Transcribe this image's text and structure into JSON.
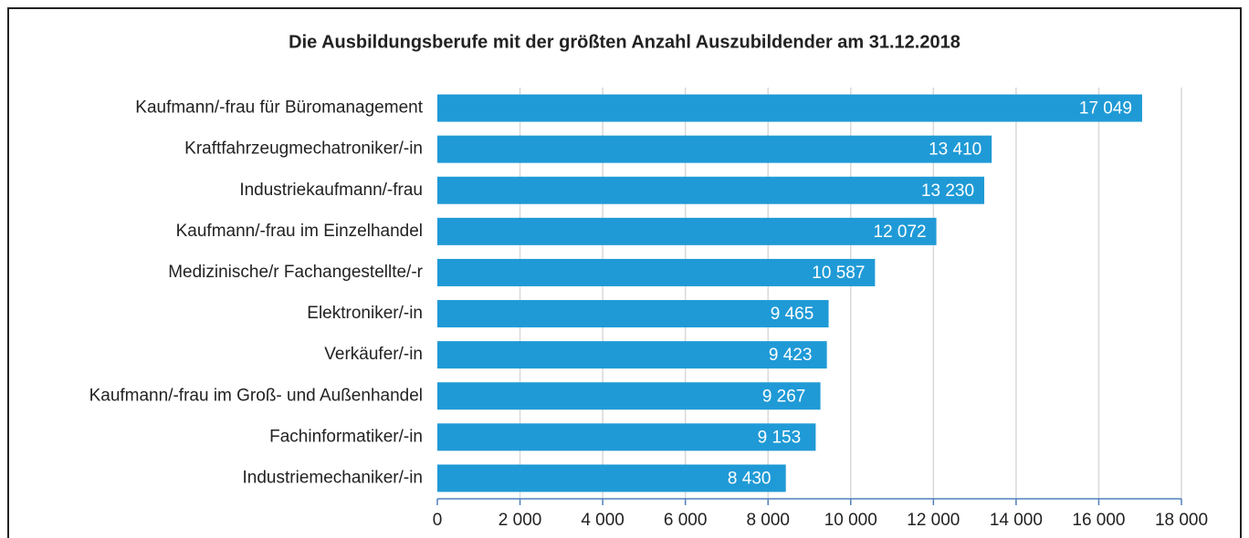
{
  "chart_data": {
    "type": "hbar",
    "title": "Die Ausbildungsberufe mit der größten Anzahl Auszubildender am 31.12.2018",
    "categories": [
      "Kaufmann/-frau für Büromanagement",
      "Kraftfahrzeugmechatroniker/-in",
      "Industriekaufmann/-frau",
      "Kaufmann/-frau im Einzelhandel",
      "Medizinische/r Fachangestellte/-r",
      "Elektroniker/-in",
      "Verkäufer/-in",
      "Kaufmann/-frau im Groß- und Außenhandel",
      "Fachinformatiker/-in",
      "Industriemechaniker/-in"
    ],
    "values": [
      17049,
      13410,
      13230,
      12072,
      10587,
      9465,
      9423,
      9267,
      9153,
      8430
    ],
    "value_labels": [
      "17 049",
      "13 410",
      "13 230",
      "12 072",
      "10 587",
      "9 465",
      "9 423",
      "9 267",
      "9 153",
      "8 430"
    ],
    "color": "#1f9ad6",
    "xlim": [
      0,
      18000
    ],
    "xticks": [
      0,
      {
        "value": 2000,
        "label": "2 000"
      },
      {
        "value": 4000,
        "label": "4 000"
      },
      {
        "value": 6000,
        "label": "6 000"
      },
      {
        "value": 8000,
        "label": "8 000"
      },
      {
        "value": 10000,
        "label": "10 000"
      },
      {
        "value": 12000,
        "label": "12 000"
      },
      {
        "value": 14000,
        "label": "14 000"
      },
      {
        "value": 16000,
        "label": "16 000"
      },
      {
        "value": 18000,
        "label": "18 000"
      }
    ],
    "grid": true
  }
}
